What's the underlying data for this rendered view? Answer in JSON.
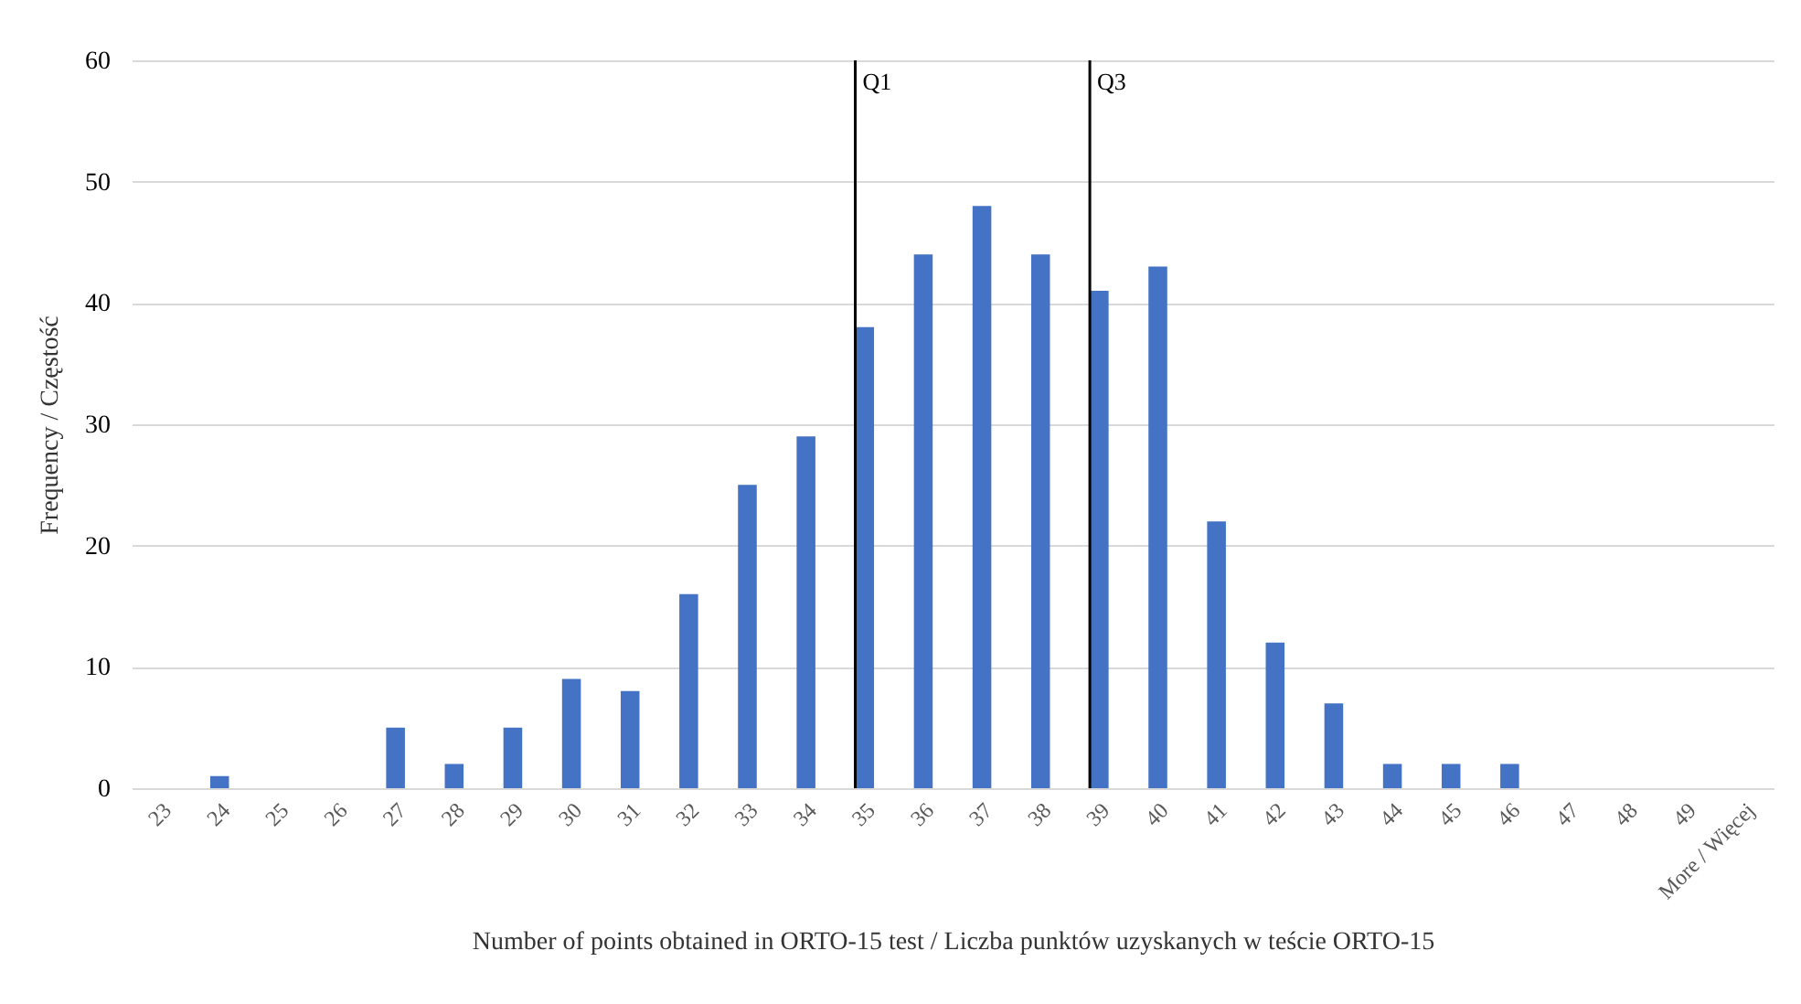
{
  "chart_data": {
    "type": "bar",
    "xlabel": "Number of points obtained in ORTO-15 test / Liczba punktów uzyskanych w teście ORTO-15",
    "ylabel": "Frequency / Częstość",
    "categories": [
      "23",
      "24",
      "25",
      "26",
      "27",
      "28",
      "29",
      "30",
      "31",
      "32",
      "33",
      "34",
      "35",
      "36",
      "37",
      "38",
      "39",
      "40",
      "41",
      "42",
      "43",
      "44",
      "45",
      "46",
      "47",
      "48",
      "49",
      "More / Więcej"
    ],
    "values": [
      0,
      1,
      0,
      0,
      5,
      2,
      5,
      9,
      8,
      16,
      25,
      29,
      38,
      44,
      48,
      44,
      41,
      43,
      22,
      12,
      7,
      2,
      2,
      2,
      0,
      0,
      0,
      0
    ],
    "color": "#4472c4",
    "ylim": [
      0,
      60
    ],
    "yticks": [
      0,
      10,
      20,
      30,
      40,
      50,
      60
    ],
    "grid": "y",
    "ref_lines": [
      {
        "axis": "x",
        "value": "35",
        "label": "Q1",
        "color": "#000000"
      },
      {
        "axis": "x",
        "value": "39",
        "label": "Q3",
        "color": "#000000"
      }
    ]
  }
}
